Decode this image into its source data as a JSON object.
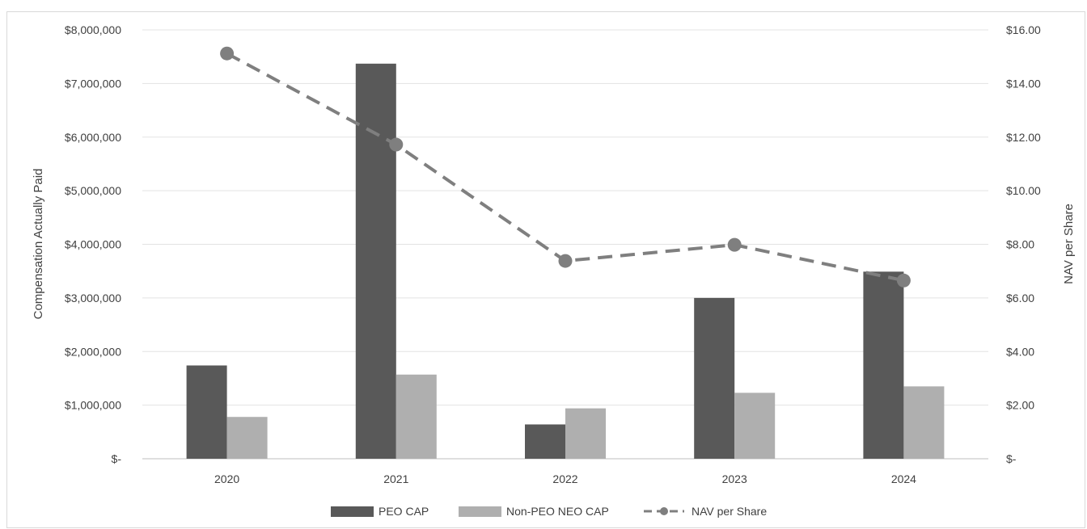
{
  "chart_data": {
    "type": "bar",
    "categories": [
      "2020",
      "2021",
      "2022",
      "2023",
      "2024"
    ],
    "series": [
      {
        "name": "PEO CAP",
        "type": "bar",
        "axis": "left",
        "color": "#595959",
        "values": [
          1740000,
          7370000,
          640000,
          3000000,
          3490000
        ]
      },
      {
        "name": "Non-PEO NEO CAP",
        "type": "bar",
        "axis": "left",
        "color": "#afafaf",
        "values": [
          780000,
          1570000,
          940000,
          1230000,
          1350000
        ]
      },
      {
        "name": "NAV per Share",
        "type": "line",
        "axis": "right",
        "color": "#7f7f7f",
        "dash": "dashed",
        "marker": "circle",
        "values": [
          15.12,
          11.72,
          7.38,
          7.98,
          6.65
        ]
      }
    ],
    "ylabel": "Compensation Actually Paid",
    "y2label": "NAV per Share",
    "ylim": [
      0,
      8000000
    ],
    "y2lim": [
      0,
      16
    ],
    "yticks": [
      "$-",
      "$1,000,000",
      "$2,000,000",
      "$3,000,000",
      "$4,000,000",
      "$5,000,000",
      "$6,000,000",
      "$7,000,000",
      "$8,000,000"
    ],
    "y2ticks": [
      "$-",
      "$2.00",
      "$4.00",
      "$6.00",
      "$8.00",
      "$10.00",
      "$12.00",
      "$14.00",
      "$16.00"
    ],
    "grid": true,
    "legend_position": "bottom"
  }
}
